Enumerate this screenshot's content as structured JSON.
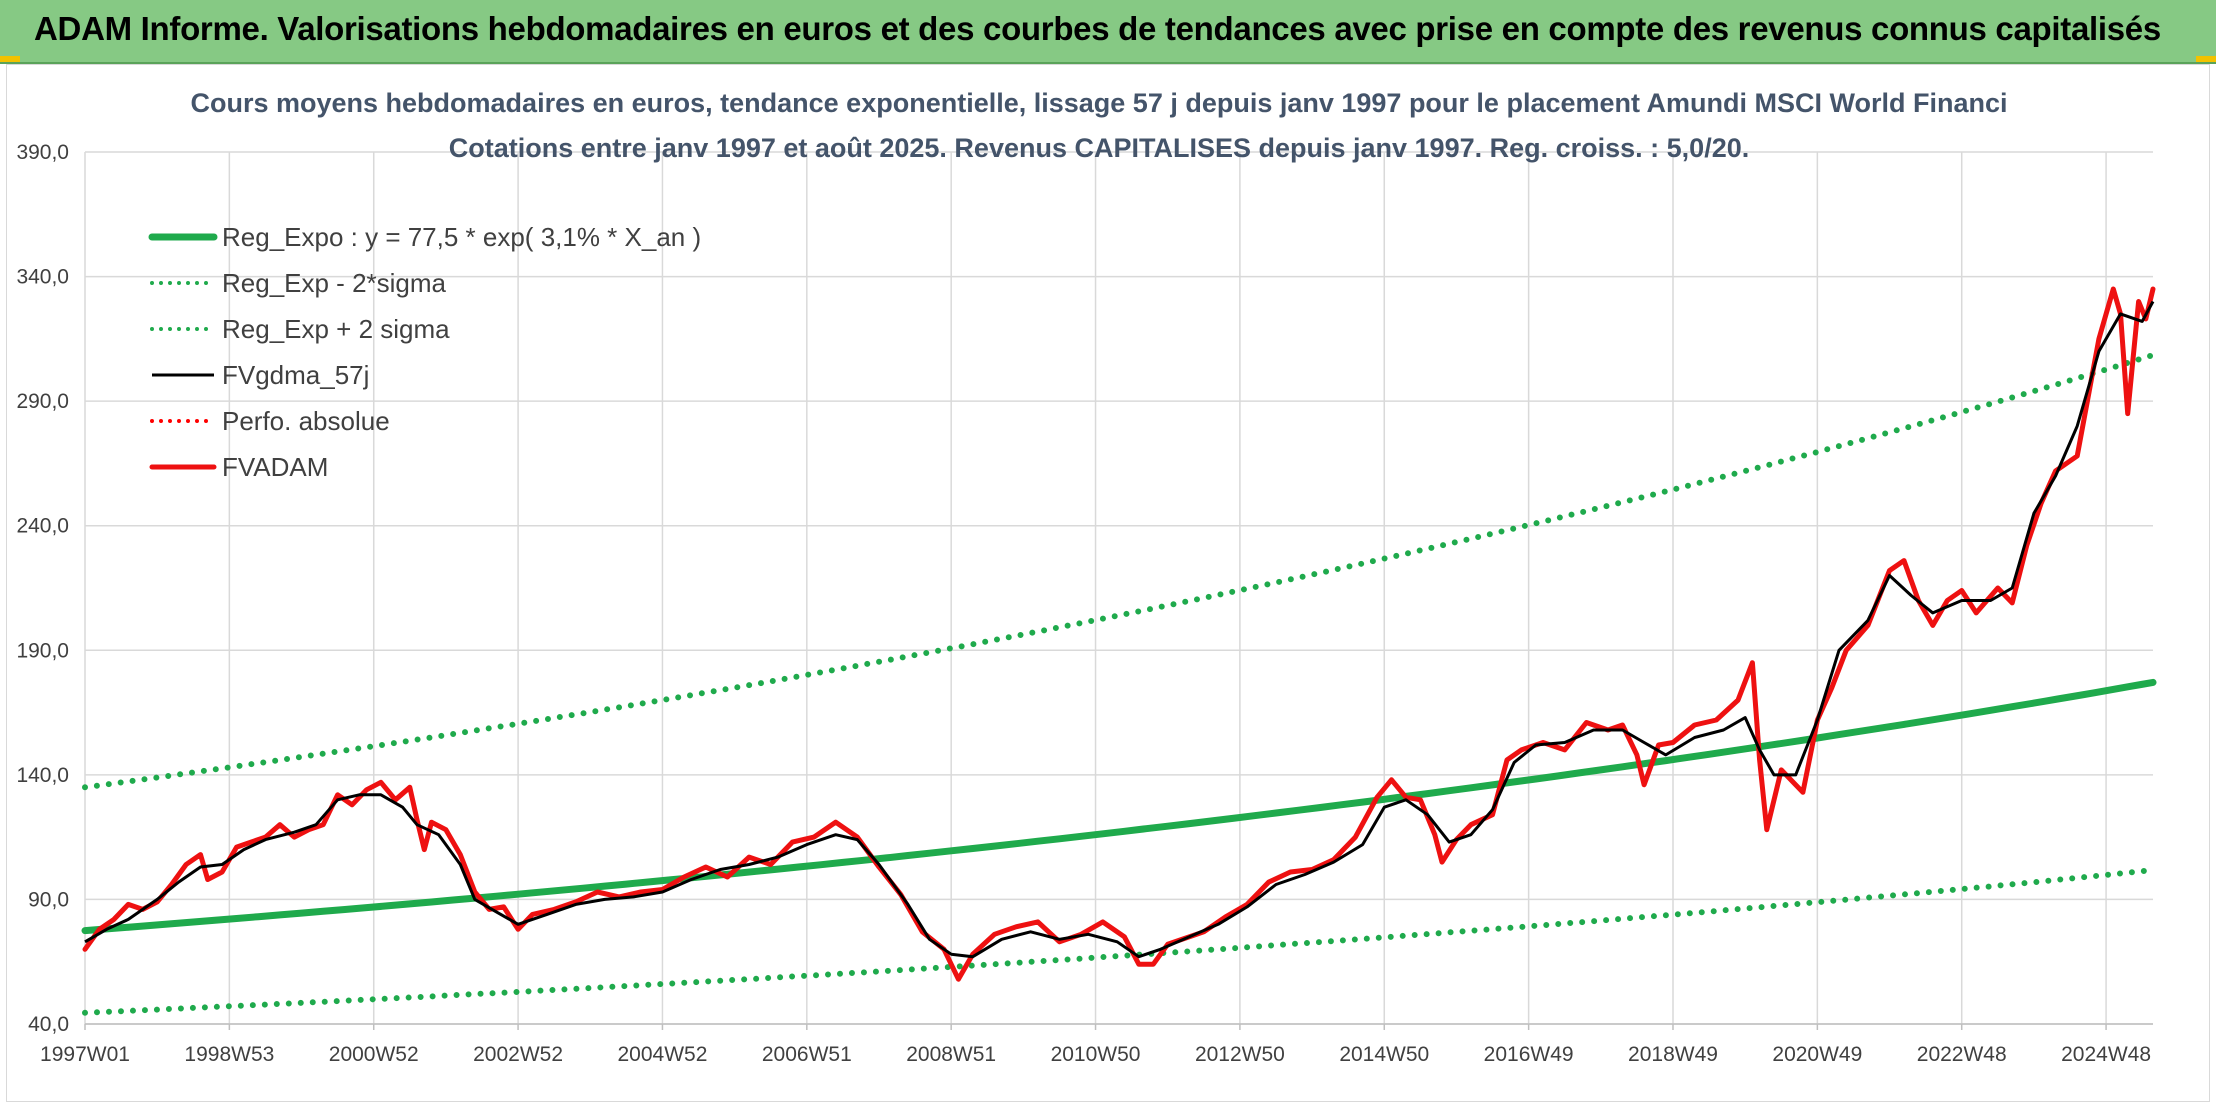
{
  "banner": {
    "title": "ADAM Informe. Valorisations hebdomadaires en euros et des courbes de tendances avec prise en compte des revenus connus capitalisés"
  },
  "colors": {
    "banner_bg": "#86c984",
    "trend_green": "#1faa4c",
    "fvadam_red": "#ee1111",
    "fvgdma_black": "#000000",
    "perfo_red": "#ff0000",
    "grid": "#d9d9d9"
  },
  "chart_data": {
    "type": "line",
    "title_line1": "Cours moyens hebdomadaires en euros, tendance exponentielle, lissage 57 j depuis janv 1997 pour le placement Amundi MSCI World Financi",
    "title_line2": "Cotations entre janv 1997 et août 2025. Revenus CAPITALISES depuis janv 1997. Reg. croiss. : 5,0/20.",
    "xlabel": "",
    "ylabel": "",
    "x_range": [
      1997.0,
      2025.65
    ],
    "ylim": [
      40,
      390
    ],
    "y_ticks": [
      40,
      90,
      140,
      190,
      240,
      290,
      340,
      390
    ],
    "y_tick_labels": [
      "40,0",
      "90,0",
      "140,0",
      "190,0",
      "240,0",
      "290,0",
      "340,0",
      "390,0"
    ],
    "x_ticks": [
      1997.0,
      1999.0,
      2001.0,
      2003.0,
      2005.0,
      2007.0,
      2009.0,
      2011.0,
      2013.0,
      2015.0,
      2017.0,
      2019.0,
      2021.0,
      2023.0,
      2025.0
    ],
    "x_tick_labels": [
      "1997W01",
      "1998W53",
      "2000W52",
      "2002W52",
      "2004W52",
      "2006W51",
      "2008W51",
      "2010W50",
      "2012W50",
      "2014W50",
      "2016W49",
      "2018W49",
      "2020W49",
      "2022W48",
      "2024W48"
    ],
    "grid": true,
    "legend_position": "top-left",
    "series": [
      {
        "name": "Reg_Expo : y = 77,5 * exp( 3,1% *  X_an )",
        "style": "solid-thick",
        "color": "#1faa4c",
        "points": [
          [
            1997.0,
            77.5
          ],
          [
            2000.0,
            84.5
          ],
          [
            2003.0,
            92.1
          ],
          [
            2006.0,
            100.4
          ],
          [
            2009.0,
            109.5
          ],
          [
            2012.0,
            119.4
          ],
          [
            2015.0,
            130.2
          ],
          [
            2018.0,
            142.0
          ],
          [
            2021.0,
            154.8
          ],
          [
            2024.0,
            168.8
          ],
          [
            2025.65,
            177.1
          ]
        ]
      },
      {
        "name": "Reg_Exp - 2*sigma",
        "style": "dotted",
        "color": "#1faa4c",
        "points": [
          [
            1997.0,
            44.5
          ],
          [
            2000.0,
            48.5
          ],
          [
            2003.0,
            52.9
          ],
          [
            2006.0,
            57.7
          ],
          [
            2009.0,
            62.9
          ],
          [
            2012.0,
            68.6
          ],
          [
            2015.0,
            74.8
          ],
          [
            2018.0,
            81.5
          ],
          [
            2021.0,
            88.9
          ],
          [
            2024.0,
            96.9
          ],
          [
            2025.65,
            101.8
          ]
        ]
      },
      {
        "name": "Reg_Exp + 2 sigma",
        "style": "dotted",
        "color": "#1faa4c",
        "points": [
          [
            1997.0,
            135.0
          ],
          [
            2000.0,
            147.2
          ],
          [
            2003.0,
            160.5
          ],
          [
            2006.0,
            175.0
          ],
          [
            2009.0,
            190.8
          ],
          [
            2012.0,
            208.0
          ],
          [
            2015.0,
            226.8
          ],
          [
            2018.0,
            247.3
          ],
          [
            2021.0,
            269.6
          ],
          [
            2024.0,
            294.0
          ],
          [
            2025.65,
            308.5
          ]
        ]
      },
      {
        "name": "FVgdma_57j",
        "style": "solid",
        "color": "#000000",
        "points": [
          [
            1997.0,
            73
          ],
          [
            1997.3,
            78
          ],
          [
            1997.6,
            82
          ],
          [
            1998.0,
            90
          ],
          [
            1998.3,
            97
          ],
          [
            1998.6,
            103
          ],
          [
            1998.9,
            104
          ],
          [
            1999.2,
            110
          ],
          [
            1999.5,
            114
          ],
          [
            1999.9,
            117
          ],
          [
            2000.2,
            120
          ],
          [
            2000.5,
            130
          ],
          [
            2000.8,
            132
          ],
          [
            2001.1,
            132
          ],
          [
            2001.4,
            127
          ],
          [
            2001.6,
            120
          ],
          [
            2001.9,
            116
          ],
          [
            2002.2,
            104
          ],
          [
            2002.4,
            90
          ],
          [
            2002.7,
            85
          ],
          [
            2003.0,
            80
          ],
          [
            2003.4,
            84
          ],
          [
            2003.8,
            88
          ],
          [
            2004.2,
            90
          ],
          [
            2004.6,
            91
          ],
          [
            2005.0,
            93
          ],
          [
            2005.4,
            98
          ],
          [
            2005.8,
            102
          ],
          [
            2006.2,
            104
          ],
          [
            2006.6,
            107
          ],
          [
            2007.0,
            112
          ],
          [
            2007.4,
            116
          ],
          [
            2007.7,
            114
          ],
          [
            2008.0,
            104
          ],
          [
            2008.4,
            88
          ],
          [
            2008.7,
            74
          ],
          [
            2009.0,
            68
          ],
          [
            2009.3,
            67
          ],
          [
            2009.7,
            74
          ],
          [
            2010.1,
            77
          ],
          [
            2010.5,
            74
          ],
          [
            2010.9,
            76
          ],
          [
            2011.3,
            73
          ],
          [
            2011.6,
            67
          ],
          [
            2011.9,
            70
          ],
          [
            2012.3,
            75
          ],
          [
            2012.7,
            80
          ],
          [
            2013.1,
            87
          ],
          [
            2013.5,
            96
          ],
          [
            2013.9,
            100
          ],
          [
            2014.3,
            105
          ],
          [
            2014.7,
            112
          ],
          [
            2015.0,
            127
          ],
          [
            2015.3,
            130
          ],
          [
            2015.6,
            124
          ],
          [
            2015.9,
            113
          ],
          [
            2016.2,
            116
          ],
          [
            2016.5,
            126
          ],
          [
            2016.8,
            145
          ],
          [
            2017.1,
            152
          ],
          [
            2017.5,
            153
          ],
          [
            2017.9,
            158
          ],
          [
            2018.3,
            158
          ],
          [
            2018.6,
            153
          ],
          [
            2018.9,
            148
          ],
          [
            2019.3,
            155
          ],
          [
            2019.7,
            158
          ],
          [
            2020.0,
            163
          ],
          [
            2020.2,
            150
          ],
          [
            2020.4,
            140
          ],
          [
            2020.7,
            140
          ],
          [
            2021.0,
            162
          ],
          [
            2021.3,
            190
          ],
          [
            2021.7,
            202
          ],
          [
            2022.0,
            220
          ],
          [
            2022.3,
            212
          ],
          [
            2022.6,
            205
          ],
          [
            2023.0,
            210
          ],
          [
            2023.4,
            210
          ],
          [
            2023.7,
            215
          ],
          [
            2024.0,
            245
          ],
          [
            2024.3,
            260
          ],
          [
            2024.6,
            280
          ],
          [
            2024.9,
            310
          ],
          [
            2025.2,
            325
          ],
          [
            2025.5,
            322
          ],
          [
            2025.65,
            330
          ]
        ]
      },
      {
        "name": "Perfo. absolue",
        "style": "dotted",
        "color": "#ff0000",
        "points": []
      },
      {
        "name": "FVADAM",
        "style": "solid-thick",
        "color": "#ee1111",
        "points": [
          [
            1997.0,
            70
          ],
          [
            1997.2,
            78
          ],
          [
            1997.4,
            82
          ],
          [
            1997.6,
            88
          ],
          [
            1997.8,
            86
          ],
          [
            1998.0,
            89
          ],
          [
            1998.2,
            96
          ],
          [
            1998.4,
            104
          ],
          [
            1998.6,
            108
          ],
          [
            1998.7,
            98
          ],
          [
            1998.9,
            101
          ],
          [
            1999.1,
            111
          ],
          [
            1999.3,
            113
          ],
          [
            1999.5,
            115
          ],
          [
            1999.7,
            120
          ],
          [
            1999.9,
            115
          ],
          [
            2000.1,
            118
          ],
          [
            2000.3,
            120
          ],
          [
            2000.5,
            132
          ],
          [
            2000.7,
            128
          ],
          [
            2000.9,
            134
          ],
          [
            2001.1,
            137
          ],
          [
            2001.3,
            130
          ],
          [
            2001.5,
            135
          ],
          [
            2001.6,
            122
          ],
          [
            2001.7,
            110
          ],
          [
            2001.8,
            121
          ],
          [
            2002.0,
            118
          ],
          [
            2002.2,
            108
          ],
          [
            2002.4,
            93
          ],
          [
            2002.6,
            86
          ],
          [
            2002.8,
            87
          ],
          [
            2003.0,
            78
          ],
          [
            2003.2,
            84
          ],
          [
            2003.5,
            86
          ],
          [
            2003.8,
            89
          ],
          [
            2004.1,
            93
          ],
          [
            2004.4,
            91
          ],
          [
            2004.7,
            93
          ],
          [
            2005.0,
            94
          ],
          [
            2005.3,
            99
          ],
          [
            2005.6,
            103
          ],
          [
            2005.9,
            99
          ],
          [
            2006.2,
            107
          ],
          [
            2006.5,
            104
          ],
          [
            2006.8,
            113
          ],
          [
            2007.1,
            115
          ],
          [
            2007.4,
            121
          ],
          [
            2007.7,
            115
          ],
          [
            2008.0,
            103
          ],
          [
            2008.3,
            92
          ],
          [
            2008.6,
            77
          ],
          [
            2008.9,
            70
          ],
          [
            2009.1,
            58
          ],
          [
            2009.3,
            68
          ],
          [
            2009.6,
            76
          ],
          [
            2009.9,
            79
          ],
          [
            2010.2,
            81
          ],
          [
            2010.5,
            73
          ],
          [
            2010.8,
            76
          ],
          [
            2011.1,
            81
          ],
          [
            2011.4,
            75
          ],
          [
            2011.6,
            64
          ],
          [
            2011.8,
            64
          ],
          [
            2012.0,
            72
          ],
          [
            2012.2,
            74
          ],
          [
            2012.5,
            77
          ],
          [
            2012.8,
            83
          ],
          [
            2013.1,
            88
          ],
          [
            2013.4,
            97
          ],
          [
            2013.7,
            101
          ],
          [
            2014.0,
            102
          ],
          [
            2014.3,
            106
          ],
          [
            2014.6,
            115
          ],
          [
            2014.9,
            131
          ],
          [
            2015.1,
            138
          ],
          [
            2015.3,
            131
          ],
          [
            2015.5,
            130
          ],
          [
            2015.7,
            116
          ],
          [
            2015.8,
            105
          ],
          [
            2016.0,
            114
          ],
          [
            2016.2,
            120
          ],
          [
            2016.5,
            124
          ],
          [
            2016.7,
            146
          ],
          [
            2016.9,
            150
          ],
          [
            2017.2,
            153
          ],
          [
            2017.5,
            150
          ],
          [
            2017.8,
            161
          ],
          [
            2018.1,
            158
          ],
          [
            2018.3,
            160
          ],
          [
            2018.5,
            148
          ],
          [
            2018.6,
            136
          ],
          [
            2018.8,
            152
          ],
          [
            2019.0,
            153
          ],
          [
            2019.3,
            160
          ],
          [
            2019.6,
            162
          ],
          [
            2019.9,
            170
          ],
          [
            2020.1,
            185
          ],
          [
            2020.2,
            146
          ],
          [
            2020.3,
            118
          ],
          [
            2020.5,
            142
          ],
          [
            2020.8,
            133
          ],
          [
            2021.0,
            162
          ],
          [
            2021.2,
            175
          ],
          [
            2021.4,
            190
          ],
          [
            2021.7,
            200
          ],
          [
            2022.0,
            222
          ],
          [
            2022.2,
            226
          ],
          [
            2022.4,
            210
          ],
          [
            2022.6,
            200
          ],
          [
            2022.8,
            210
          ],
          [
            2023.0,
            214
          ],
          [
            2023.2,
            205
          ],
          [
            2023.5,
            215
          ],
          [
            2023.7,
            209
          ],
          [
            2023.9,
            232
          ],
          [
            2024.1,
            249
          ],
          [
            2024.3,
            262
          ],
          [
            2024.6,
            268
          ],
          [
            2024.9,
            315
          ],
          [
            2025.1,
            335
          ],
          [
            2025.2,
            325
          ],
          [
            2025.3,
            285
          ],
          [
            2025.45,
            330
          ],
          [
            2025.55,
            323
          ],
          [
            2025.65,
            335
          ]
        ]
      }
    ]
  }
}
